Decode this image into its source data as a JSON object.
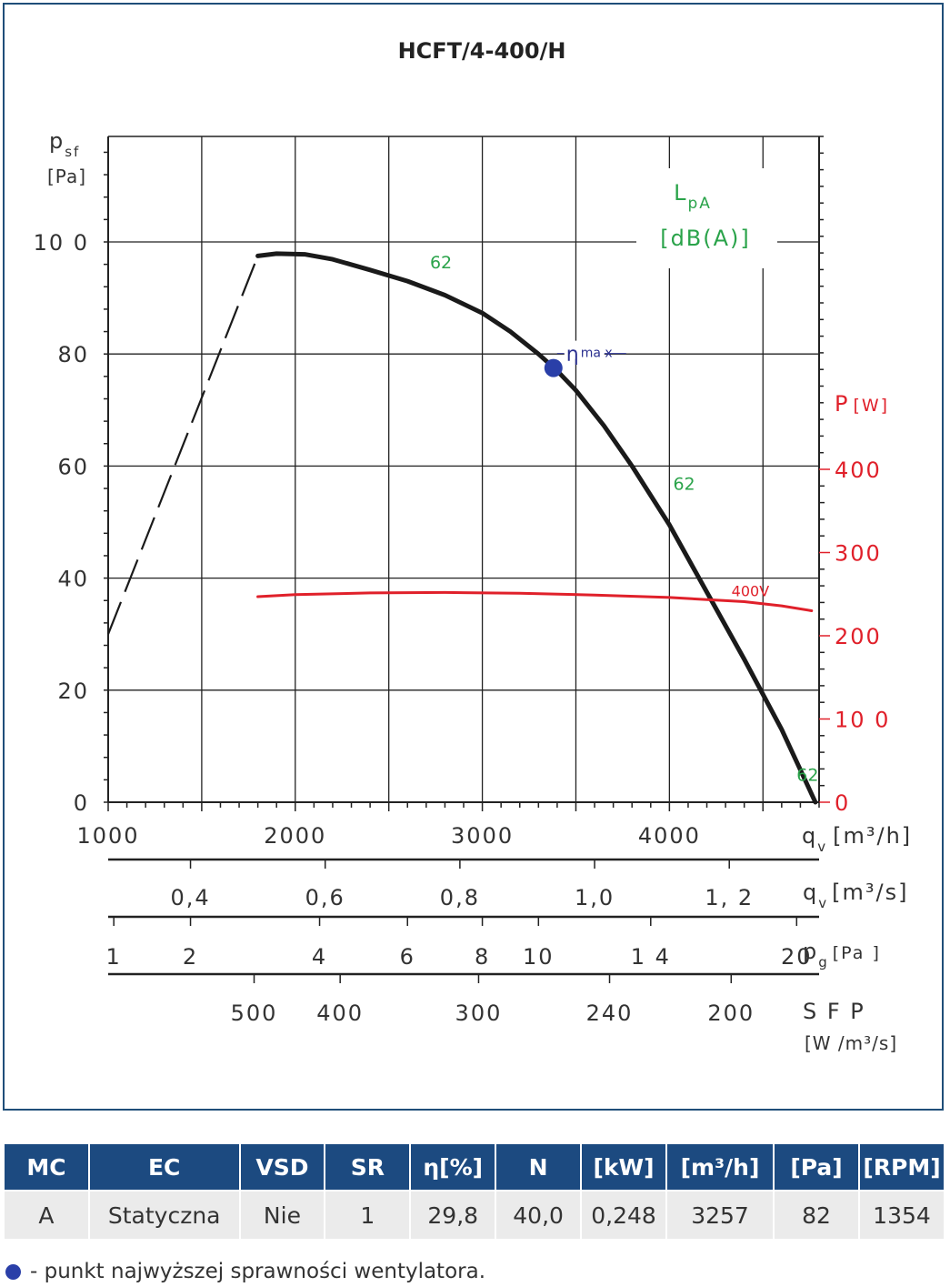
{
  "chart_data": {
    "type": "line",
    "title": "HCFT/4-400/H",
    "x_axis": {
      "label": "q",
      "label_sub": "v",
      "unit": "[m³/h]",
      "range": [
        1000,
        4800
      ],
      "ticks": [
        "1000",
        "2000",
        "3000",
        "4000"
      ]
    },
    "y_axis": {
      "label": "p",
      "label_sub": "sf",
      "unit": "[Pa]",
      "range": [
        0,
        100
      ],
      "ticks": [
        "0",
        "20",
        "40",
        "60",
        "80",
        "10 0"
      ]
    },
    "y2_axis": {
      "label": "P",
      "unit": "[W]",
      "color": "#e0202a",
      "range": [
        0,
        400
      ],
      "ticks": [
        "0",
        "10 0",
        "200",
        "300",
        "400"
      ]
    },
    "noise_label": {
      "title": "L",
      "title_sub": "pA",
      "unit": "[dB(A)]",
      "color": "#2aa34a"
    },
    "grid": true,
    "series": [
      {
        "name": "",
        "color": "#1a1a1a",
        "axis": "y",
        "x": [
          1800,
          1900,
          2050,
          2200,
          2400,
          2600,
          2800,
          3000,
          3150,
          3300,
          3400,
          3500,
          3650,
          3800,
          4000,
          4200,
          4400,
          4600,
          4780
        ],
        "y": [
          97.5,
          97.9,
          97.8,
          96.9,
          95.0,
          93.0,
          90.5,
          87.3,
          84.0,
          80.0,
          77.0,
          73.5,
          67.2,
          60.0,
          49.5,
          37.5,
          25.5,
          13.0,
          0
        ]
      },
      {
        "name": "400V",
        "color": "#e0202a",
        "axis": "y2",
        "x": [
          1800,
          2000,
          2400,
          2800,
          3200,
          3600,
          4000,
          4400,
          4600,
          4760
        ],
        "y": [
          247,
          249.5,
          251.5,
          252,
          251,
          249,
          246,
          241,
          236,
          230
        ]
      }
    ],
    "extrapolation": {
      "x": [
        1000,
        1800
      ],
      "y": [
        30,
        97.5
      ]
    },
    "eta_max": {
      "label": "η",
      "label_sup": "ma x",
      "x": 3380,
      "y": 77.5,
      "color": "#2a3fa8"
    },
    "noise_points": [
      {
        "value": "62",
        "x": 2720,
        "y": 95.3
      },
      {
        "value": "62",
        "x": 4020,
        "y": 55.8
      },
      {
        "value": "62",
        "x": 4680,
        "y": 3.8
      }
    ],
    "secondary_scales": [
      {
        "label": "q",
        "label_sub": "v",
        "unit": "[m³/s]",
        "ticks": [
          {
            "label": "0,4",
            "value": 1440
          },
          {
            "label": "0,6",
            "value": 2160
          },
          {
            "label": "0,8",
            "value": 2880
          },
          {
            "label": "1,0",
            "value": 3600
          },
          {
            "label": "1, 2",
            "value": 4320
          }
        ]
      },
      {
        "label": "p",
        "label_sub": "g",
        "unit": "[Pa ]",
        "ticks": [
          {
            "label": "1",
            "value": 1030
          },
          {
            "label": "2",
            "value": 1440
          },
          {
            "label": "4",
            "value": 2130
          },
          {
            "label": "6",
            "value": 2600
          },
          {
            "label": "8",
            "value": 3000
          },
          {
            "label": "10",
            "value": 3300
          },
          {
            "label": "1 4",
            "value": 3900
          },
          {
            "label": "20",
            "value": 4680
          }
        ]
      },
      {
        "label": "S F P",
        "unit": "[W /m³/s]",
        "ticks": [
          {
            "label": "500",
            "value": 1780
          },
          {
            "label": "400",
            "value": 2240
          },
          {
            "label": "300",
            "value": 2980
          },
          {
            "label": "240",
            "value": 3680
          },
          {
            "label": "200",
            "value": 4330
          }
        ]
      }
    ]
  },
  "table": {
    "headers": [
      "MC",
      "EC",
      "VSD",
      "SR",
      "η[%]",
      "N",
      "[kW]",
      "[m³/h]",
      "[Pa]",
      "[RPM]"
    ],
    "row": [
      "A",
      "Statyczna",
      "Nie",
      "1",
      "29,8",
      "40,0",
      "0,248",
      "3257",
      "82",
      "1354"
    ]
  },
  "legend_note": "- punkt najwyższej sprawności wentylatora."
}
